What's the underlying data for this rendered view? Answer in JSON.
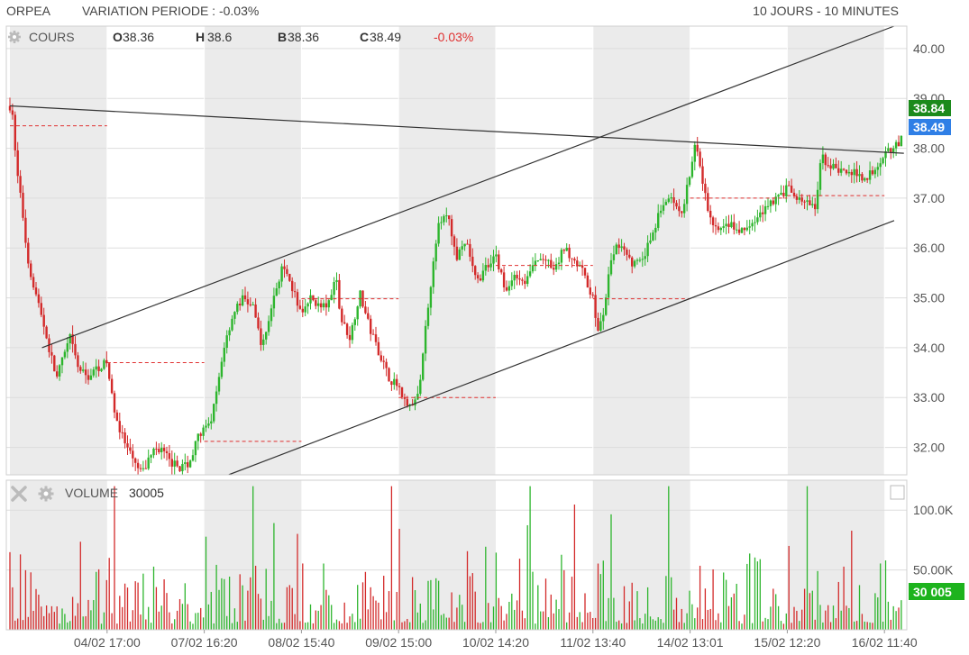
{
  "header": {
    "ticker": "ORPEA",
    "variation_label": "VARIATION PERIODE : -0.03%",
    "period_label": "10 JOURS - 10 MINUTES"
  },
  "price_panel": {
    "title": "COURS",
    "ohlc": [
      {
        "key": "O",
        "value": "38.36"
      },
      {
        "key": "H",
        "value": "38.6"
      },
      {
        "key": "B",
        "value": "38.36"
      },
      {
        "key": "C",
        "value": "38.49"
      }
    ],
    "change": "-0.03%",
    "last_high_tag": "38.84",
    "last_close_tag": "38.49"
  },
  "volume_panel": {
    "title": "VOLUME",
    "value": "30005",
    "tag": "30 005"
  },
  "colors": {
    "up": "#2db52d",
    "down": "#d32a2a",
    "shade": "#ebebeb",
    "trendline": "#333333",
    "dashed": "#e03030",
    "high_tag": "#1b8a1b",
    "close_tag": "#2f7fe6",
    "volume_tag": "#1db31d",
    "change_text": "#e03030"
  },
  "chart_data": [
    {
      "type": "candlestick",
      "panel": "price",
      "ylim": [
        31.45,
        40.45
      ],
      "y_ticks": [
        "32.00",
        "33.00",
        "34.00",
        "35.00",
        "36.00",
        "37.00",
        "38.00",
        "39.00",
        "40.00"
      ],
      "x_ticks": [
        "04/02 17:00",
        "07/02 16:20",
        "08/02 15:40",
        "09/02 15:00",
        "10/02 14:20",
        "11/02 13:40",
        "14/02 13:01",
        "15/02 12:20",
        "16/02 11:40"
      ],
      "sessions": 10,
      "shaded_sessions": [
        0,
        2,
        4,
        6,
        8
      ],
      "path": [
        [
          0,
          38.85
        ],
        [
          0.03,
          38.6
        ],
        [
          0.07,
          37.6
        ],
        [
          0.12,
          36.9
        ],
        [
          0.18,
          35.8
        ],
        [
          0.25,
          35.2
        ],
        [
          0.32,
          34.7
        ],
        [
          0.4,
          34.0
        ],
        [
          0.48,
          33.4
        ],
        [
          0.55,
          33.8
        ],
        [
          0.62,
          34.2
        ],
        [
          0.7,
          33.6
        ],
        [
          0.8,
          33.4
        ],
        [
          0.9,
          33.6
        ],
        [
          1.0,
          33.7
        ],
        [
          1.05,
          33.0
        ],
        [
          1.12,
          32.4
        ],
        [
          1.2,
          32.0
        ],
        [
          1.3,
          31.6
        ],
        [
          1.38,
          31.5
        ],
        [
          1.45,
          31.9
        ],
        [
          1.55,
          32.0
        ],
        [
          1.65,
          31.7
        ],
        [
          1.75,
          31.6
        ],
        [
          1.85,
          31.7
        ],
        [
          1.95,
          32.3
        ],
        [
          2.05,
          32.4
        ],
        [
          2.12,
          33.0
        ],
        [
          2.2,
          34.0
        ],
        [
          2.3,
          34.7
        ],
        [
          2.4,
          35.0
        ],
        [
          2.5,
          34.8
        ],
        [
          2.6,
          34.0
        ],
        [
          2.7,
          34.9
        ],
        [
          2.8,
          35.6
        ],
        [
          2.9,
          35.2
        ],
        [
          3.0,
          34.7
        ],
        [
          3.1,
          35.0
        ],
        [
          3.2,
          34.8
        ],
        [
          3.3,
          34.9
        ],
        [
          3.35,
          35.6
        ],
        [
          3.4,
          34.6
        ],
        [
          3.5,
          34.2
        ],
        [
          3.6,
          35.1
        ],
        [
          3.7,
          34.4
        ],
        [
          3.8,
          33.9
        ],
        [
          3.9,
          33.4
        ],
        [
          4.0,
          33.2
        ],
        [
          4.1,
          32.8
        ],
        [
          4.2,
          33.0
        ],
        [
          4.3,
          34.8
        ],
        [
          4.4,
          36.4
        ],
        [
          4.5,
          36.7
        ],
        [
          4.6,
          35.8
        ],
        [
          4.7,
          36.1
        ],
        [
          4.8,
          35.3
        ],
        [
          4.9,
          35.6
        ],
        [
          5.0,
          35.9
        ],
        [
          5.1,
          35.1
        ],
        [
          5.2,
          35.5
        ],
        [
          5.3,
          35.3
        ],
        [
          5.4,
          35.7
        ],
        [
          5.5,
          35.8
        ],
        [
          5.6,
          35.5
        ],
        [
          5.7,
          36.0
        ],
        [
          5.8,
          35.8
        ],
        [
          5.9,
          35.5
        ],
        [
          6.0,
          35.0
        ],
        [
          6.05,
          34.3
        ],
        [
          6.1,
          34.6
        ],
        [
          6.2,
          35.9
        ],
        [
          6.3,
          36.1
        ],
        [
          6.4,
          35.7
        ],
        [
          6.5,
          35.7
        ],
        [
          6.6,
          36.2
        ],
        [
          6.7,
          36.8
        ],
        [
          6.8,
          37.0
        ],
        [
          6.9,
          36.6
        ],
        [
          7.0,
          37.5
        ],
        [
          7.05,
          38.1
        ],
        [
          7.1,
          37.6
        ],
        [
          7.2,
          36.6
        ],
        [
          7.3,
          36.3
        ],
        [
          7.4,
          36.5
        ],
        [
          7.5,
          36.3
        ],
        [
          7.6,
          36.4
        ],
        [
          7.7,
          36.6
        ],
        [
          7.8,
          36.9
        ],
        [
          7.9,
          37.0
        ],
        [
          8.0,
          37.2
        ],
        [
          8.1,
          37.0
        ],
        [
          8.2,
          36.9
        ],
        [
          8.3,
          36.8
        ],
        [
          8.35,
          37.9
        ],
        [
          8.4,
          37.7
        ],
        [
          8.5,
          37.6
        ],
        [
          8.6,
          37.5
        ],
        [
          8.7,
          37.5
        ],
        [
          8.8,
          37.4
        ],
        [
          8.9,
          37.6
        ],
        [
          9.0,
          37.9
        ],
        [
          9.15,
          38.1
        ],
        [
          9.3,
          38.49
        ]
      ],
      "dashed_levels": [
        {
          "session": 0,
          "value": 38.45
        },
        {
          "session": 1,
          "value": 33.7
        },
        {
          "session": 2,
          "value": 32.12
        },
        {
          "session": 3,
          "value": 34.98
        },
        {
          "session": 4,
          "value": 33.0
        },
        {
          "session": 5,
          "value": 35.65
        },
        {
          "session": 6,
          "value": 34.98
        },
        {
          "session": 7,
          "value": 37.0
        },
        {
          "session": 8,
          "value": 37.05
        }
      ]
    },
    {
      "type": "bar",
      "panel": "volume",
      "ylim": [
        0,
        125000
      ],
      "y_ticks": [
        "100.0K",
        "50.00K"
      ],
      "y_tick_values": [
        100000,
        50000
      ],
      "last_value": 30005
    }
  ]
}
